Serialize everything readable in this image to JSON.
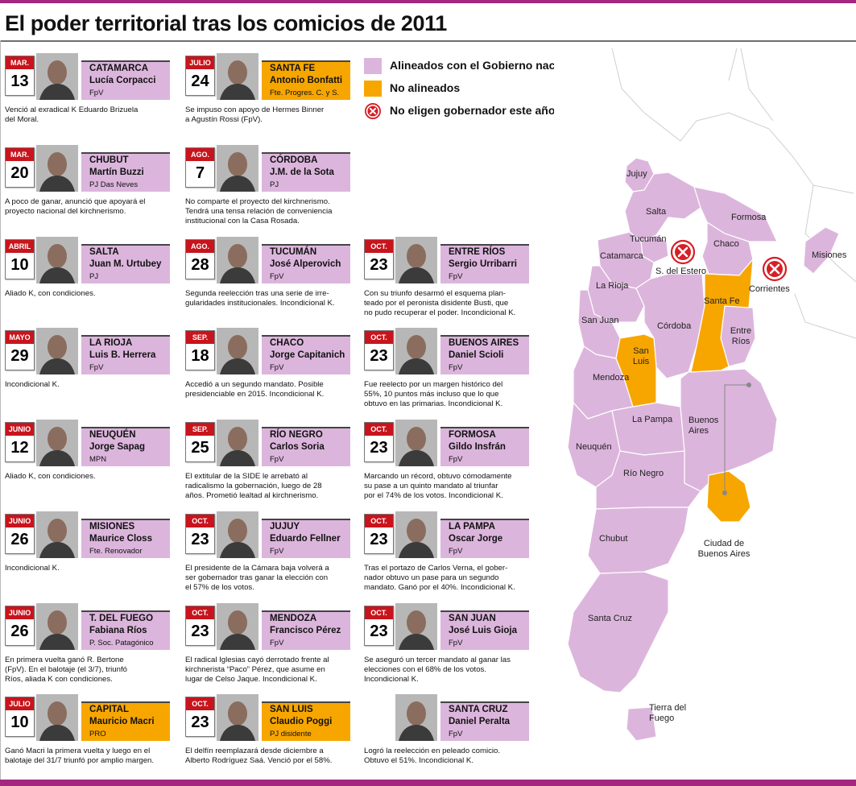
{
  "title": "El poder territorial tras los comicios de 2011",
  "colors": {
    "aligned": "#dcb5dc",
    "not_aligned": "#f7a600",
    "no_election": "#d61f26",
    "calendar": "#c8141c",
    "border": "#a3267f"
  },
  "legend": [
    {
      "label": "Alineados con el Gobierno nacional",
      "swatch": "aligned"
    },
    {
      "label": "No alineados",
      "swatch": "not_aligned"
    },
    {
      "label": "No eligen gobernador este año",
      "swatch": "no-election-icon"
    }
  ],
  "cards": [
    {
      "month": "MAR.",
      "day": "13",
      "province": "CATAMARCA",
      "candidate": "Lucía Corpacci",
      "party": "FpV",
      "aligned": true,
      "desc": [
        "Venció al exradical K Eduardo Brizuela",
        "del Moral."
      ]
    },
    {
      "month": "MAR.",
      "day": "20",
      "province": "CHUBUT",
      "candidate": "Martín Buzzi",
      "party": "PJ Das Neves",
      "aligned": true,
      "desc": [
        "A poco de ganar, anunció que apoyará el",
        "proyecto nacional del kirchnerismo."
      ]
    },
    {
      "month": "ABRIL",
      "day": "10",
      "province": "SALTA",
      "candidate": "Juan M. Urtubey",
      "party": "PJ",
      "aligned": true,
      "desc": [
        "Aliado K, con condiciones."
      ]
    },
    {
      "month": "MAYO",
      "day": "29",
      "province": "LA RIOJA",
      "candidate": "Luis B. Herrera",
      "party": "FpV",
      "aligned": true,
      "desc": [
        "Incondicional K."
      ]
    },
    {
      "month": "JUNIO",
      "day": "12",
      "province": "NEUQUÉN",
      "candidate": "Jorge Sapag",
      "party": "MPN",
      "aligned": true,
      "desc": [
        "Aliado K, con condiciones."
      ]
    },
    {
      "month": "JUNIO",
      "day": "26",
      "province": "MISIONES",
      "candidate": "Maurice Closs",
      "party": "Fte. Renovador",
      "aligned": true,
      "desc": [
        "Incondicional K."
      ]
    },
    {
      "month": "JUNIO",
      "day": "26",
      "province": "T. DEL FUEGO",
      "candidate": "Fabiana Ríos",
      "party": "P. Soc. Patagónico",
      "aligned": true,
      "desc": [
        "En primera vuelta ganó R. Bertone",
        "(FpV). En el balotaje (el 3/7), triunfó",
        "Ríos, aliada K con condiciones."
      ]
    },
    {
      "month": "JULIO",
      "day": "10",
      "province": "CAPITAL",
      "candidate": "Mauricio Macri",
      "party": "PRO",
      "aligned": false,
      "desc": [
        "Ganó Macri la primera vuelta y luego en el",
        "balotaje del 31/7 triunfó por amplio margen."
      ]
    },
    {
      "month": "JULIO",
      "day": "24",
      "province": "SANTA FE",
      "candidate": "Antonio Bonfatti",
      "party": "Fte. Progres. C. y S.",
      "aligned": false,
      "desc": [
        "Se impuso con apoyo de Hermes Binner",
        "a Agustín Rossi (FpV)."
      ]
    },
    {
      "month": "AGO.",
      "day": "7",
      "province": "CÓRDOBA",
      "candidate": "J.M. de la Sota",
      "party": "PJ",
      "aligned": true,
      "desc": [
        "No comparte el proyecto del kirchnerismo.",
        "Tendrá una tensa relación de conveniencia",
        "institucional con la Casa Rosada."
      ]
    },
    {
      "month": "AGO.",
      "day": "28",
      "province": "TUCUMÁN",
      "candidate": "José Alperovich",
      "party": "FpV",
      "aligned": true,
      "desc": [
        "Segunda reelección tras una serie de irre-",
        "gularidades institucionales. Incondicional K."
      ]
    },
    {
      "month": "SEP.",
      "day": "18",
      "province": "CHACO",
      "candidate": "Jorge Capitanich",
      "party": "FpV",
      "aligned": true,
      "desc": [
        "Accedió a un segundo mandato. Posible",
        "presidenciable en 2015. Incondicional K."
      ]
    },
    {
      "month": "SEP.",
      "day": "25",
      "province": "RÍO NEGRO",
      "candidate": "Carlos Soria",
      "party": "FpV",
      "aligned": true,
      "desc": [
        "El extitular de la SIDE le arrebató al",
        "radicalismo la gobernación, luego de 28",
        "años. Prometió lealtad al kirchnerismo."
      ]
    },
    {
      "month": "OCT.",
      "day": "23",
      "province": "JUJUY",
      "candidate": "Eduardo Fellner",
      "party": "FpV",
      "aligned": true,
      "desc": [
        "El presidente de la Cámara baja volverá a",
        "ser gobernador tras ganar la elección con",
        "el 57% de los votos."
      ]
    },
    {
      "month": "OCT.",
      "day": "23",
      "province": "MENDOZA",
      "candidate": "Francisco Pérez",
      "party": "FpV",
      "aligned": true,
      "desc": [
        "El radical Iglesias cayó derrotado frente al",
        "kirchnerista “Paco” Pérez, que asume en",
        "lugar de Celso Jaque. Incondicional K."
      ]
    },
    {
      "month": "OCT.",
      "day": "23",
      "province": "SAN LUIS",
      "candidate": "Claudio Poggi",
      "party": "PJ disidente",
      "aligned": false,
      "desc": [
        "El delfín reemplazará desde diciembre a",
        "Alberto Rodríguez Saá. Venció por el 58%."
      ]
    },
    {
      "month": "OCT.",
      "day": "23",
      "province": "ENTRE RÍOS",
      "candidate": "Sergio Urribarri",
      "party": "FpV",
      "aligned": true,
      "desc": [
        "Con su triunfo desarmó el esquema plan-",
        "teado por el peronista disidente Busti, que",
        "no pudo recuperar el poder. Incondicional K."
      ]
    },
    {
      "month": "OCT.",
      "day": "23",
      "province": "BUENOS AIRES",
      "candidate": "Daniel Scioli",
      "party": "FpV",
      "aligned": true,
      "desc": [
        "Fue reelecto por un margen histórico del",
        "55%, 10 puntos más incluso que lo que",
        "obtuvo en las primarias. Incondicional K."
      ]
    },
    {
      "month": "OCT.",
      "day": "23",
      "province": "FORMOSA",
      "candidate": "Gildo Insfrán",
      "party": "FpV",
      "aligned": true,
      "desc": [
        "Marcando un récord, obtuvo cómodamente",
        "su pase a un quinto mandato al triunfar",
        "por el 74% de los votos. Incondicional K."
      ]
    },
    {
      "month": "OCT.",
      "day": "23",
      "province": "LA PAMPA",
      "candidate": "Oscar Jorge",
      "party": "FpV",
      "aligned": true,
      "desc": [
        "Tras el portazo de Carlos Verna, el gober-",
        "nador obtuvo un pase para un segundo",
        "mandato. Ganó por el 40%. Incondicional K."
      ]
    },
    {
      "month": "OCT.",
      "day": "23",
      "province": "SAN JUAN",
      "candidate": "José Luis Gioja",
      "party": "FpV",
      "aligned": true,
      "desc": [
        "Se aseguró un tercer mandato al ganar las",
        "elecciones con el 68% de los votos.",
        "Incondicional K."
      ]
    },
    {
      "month": "",
      "day": "",
      "province": "SANTA CRUZ",
      "candidate": "Daniel Peralta",
      "party": "FpV",
      "aligned": true,
      "desc": [
        "Logró la reelección en peleado comicio.",
        "Obtuvo el 51%.  Incondicional K."
      ]
    }
  ],
  "map": {
    "labels": [
      "Jujuy",
      "Salta",
      "Formosa",
      "Tucumán",
      "Chaco",
      "Catamarca",
      "S. del Estero",
      "Misiones",
      "Corrientes",
      "La Rioja",
      "Santa Fe",
      "San Juan",
      "Córdoba",
      "Entre Ríos",
      "San Luis",
      "Mendoza",
      "La Pampa",
      "Buenos Aires",
      "Neuquén",
      "Río Negro",
      "Chubut",
      "Ciudad de Buenos Aires",
      "Santa Cruz",
      "Tierra del Fuego"
    ]
  }
}
